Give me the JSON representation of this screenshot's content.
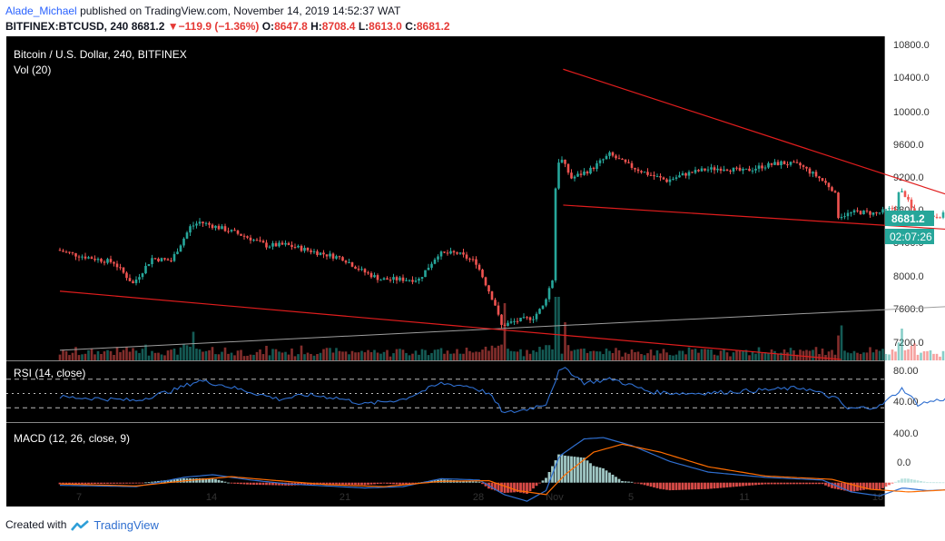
{
  "header": {
    "author": "Alade_Michael",
    "published_text": "published on TradingView.com, November 14, 2019 14:52:37 WAT"
  },
  "quote": {
    "symbol_line": "BITFINEX:BTCUSD, 240",
    "last": "8681.2",
    "change": "−119.9 (−1.36%)",
    "open_label": "O:",
    "open": "8647.8",
    "high_label": "H:",
    "high": "8708.4",
    "low_label": "L:",
    "low": "8613.0",
    "close_label": "C:",
    "close": "8681.2"
  },
  "legend": {
    "title": "Bitcoin / U.S. Dollar, 240, BITFINEX",
    "volume": "Vol (20)",
    "rsi": "RSI (14, close)",
    "macd": "MACD (12, 26, close, 9)"
  },
  "price_badge": {
    "price": "8681.2",
    "countdown": "02:07:26"
  },
  "footer": {
    "created_with": "Created with",
    "brand": "TradingView"
  },
  "colors": {
    "up": "#26a69a",
    "down": "#ef5350",
    "trendline": "#e01d1d",
    "rsi_line": "#2f6fd0",
    "macd_line": "#2f6fd0",
    "signal_line": "#ff6d00",
    "badge_price": "#26a69a",
    "badge_time": "#26a69a"
  },
  "chart_data": [
    {
      "type": "candlestick",
      "title": "Bitcoin / U.S. Dollar, 240, BITFINEX",
      "x_ticks": [
        "7",
        "14",
        "21",
        "28",
        "Nov",
        "5",
        "11",
        "18"
      ],
      "y_ticks": [
        "10800.0",
        "10400.0",
        "10000.0",
        "9600.0",
        "9200.0",
        "8800.0",
        "8400.0",
        "8000.0",
        "7600.0",
        "7200.0"
      ],
      "ylim": [
        7040,
        10880
      ],
      "anchors": [
        {
          "day": -1.0,
          "price": 8350
        },
        {
          "day": 0.0,
          "price": 8290
        },
        {
          "day": 2.0,
          "price": 8200
        },
        {
          "day": 3.0,
          "price": 7950
        },
        {
          "day": 4.0,
          "price": 8250
        },
        {
          "day": 5.0,
          "price": 8220
        },
        {
          "day": 6.0,
          "price": 8620
        },
        {
          "day": 6.5,
          "price": 8680
        },
        {
          "day": 8.0,
          "price": 8580
        },
        {
          "day": 9.0,
          "price": 8500
        },
        {
          "day": 10.0,
          "price": 8400
        },
        {
          "day": 11.0,
          "price": 8410
        },
        {
          "day": 13.0,
          "price": 8300
        },
        {
          "day": 14.0,
          "price": 8250
        },
        {
          "day": 15.0,
          "price": 8100
        },
        {
          "day": 16.0,
          "price": 8000
        },
        {
          "day": 18.0,
          "price": 8000
        },
        {
          "day": 19.0,
          "price": 8300
        },
        {
          "day": 20.0,
          "price": 8310
        },
        {
          "day": 21.0,
          "price": 8200
        },
        {
          "day": 22.0,
          "price": 7700
        },
        {
          "day": 22.3,
          "price": 7450
        },
        {
          "day": 23.0,
          "price": 7500
        },
        {
          "day": 24.0,
          "price": 7550
        },
        {
          "day": 24.5,
          "price": 7680
        },
        {
          "day": 25.0,
          "price": 8000
        },
        {
          "day": 25.2,
          "price": 9300
        },
        {
          "day": 25.4,
          "price": 9450
        },
        {
          "day": 26.0,
          "price": 9200
        },
        {
          "day": 27.0,
          "price": 9300
        },
        {
          "day": 28.0,
          "price": 9480
        },
        {
          "day": 29.0,
          "price": 9350
        },
        {
          "day": 30.0,
          "price": 9250
        },
        {
          "day": 31.0,
          "price": 9170
        },
        {
          "day": 32.0,
          "price": 9250
        },
        {
          "day": 33.0,
          "price": 9300
        },
        {
          "day": 34.0,
          "price": 9320
        },
        {
          "day": 35.0,
          "price": 9280
        },
        {
          "day": 36.0,
          "price": 9340
        },
        {
          "day": 37.0,
          "price": 9380
        },
        {
          "day": 38.0,
          "price": 9350
        },
        {
          "day": 39.0,
          "price": 9200
        },
        {
          "day": 39.8,
          "price": 9050
        },
        {
          "day": 40.0,
          "price": 8750
        },
        {
          "day": 41.0,
          "price": 8800
        },
        {
          "day": 42.0,
          "price": 8780
        },
        {
          "day": 43.0,
          "price": 8850
        },
        {
          "day": 43.2,
          "price": 9050
        },
        {
          "day": 43.5,
          "price": 9000
        },
        {
          "day": 44.0,
          "price": 8750
        },
        {
          "day": 45.0,
          "price": 8750
        },
        {
          "day": 46.0,
          "price": 8780
        },
        {
          "day": 46.5,
          "price": 8820
        },
        {
          "day": 47.0,
          "price": 8750
        },
        {
          "day": 47.5,
          "price": 8681.2
        }
      ],
      "trendlines": [
        {
          "from": {
            "day": 25.4,
            "price": 10490
          },
          "to": {
            "day": 47.9,
            "price": 8830
          }
        },
        {
          "from": {
            "day": 25.4,
            "price": 8880
          },
          "to": {
            "day": 47.9,
            "price": 8560
          }
        },
        {
          "from": {
            "day": -1.0,
            "price": 7860
          },
          "to": {
            "day": 40.0,
            "price": 7050
          }
        }
      ],
      "reference_line": {
        "from": {
          "day": -1.0,
          "price": 7160
        },
        "to": {
          "day": 50.3,
          "price": 7730
        }
      },
      "last_price": 8681.2
    },
    {
      "type": "bar",
      "name": "Vol (20)",
      "spikes": [
        {
          "day": 6.0,
          "level": 0.45
        },
        {
          "day": 22.3,
          "level": 0.9
        },
        {
          "day": 25.2,
          "level": 1.0
        },
        {
          "day": 25.5,
          "level": 0.6
        },
        {
          "day": 40.0,
          "level": 0.55
        },
        {
          "day": 43.2,
          "level": 0.5
        }
      ]
    },
    {
      "type": "line",
      "name": "RSI (14, close)",
      "y_ticks": [
        "80.00",
        "40.00"
      ],
      "ylim": [
        10,
        95
      ],
      "levels": [
        70,
        50,
        30
      ],
      "anchors": [
        {
          "day": -1.0,
          "value": 45
        },
        {
          "day": 1.0,
          "value": 43
        },
        {
          "day": 3.0,
          "value": 40
        },
        {
          "day": 5.0,
          "value": 55
        },
        {
          "day": 6.3,
          "value": 68
        },
        {
          "day": 7.5,
          "value": 62
        },
        {
          "day": 9.0,
          "value": 52
        },
        {
          "day": 10.5,
          "value": 42
        },
        {
          "day": 12.0,
          "value": 48
        },
        {
          "day": 13.5,
          "value": 44
        },
        {
          "day": 15.0,
          "value": 35
        },
        {
          "day": 17.0,
          "value": 42
        },
        {
          "day": 19.0,
          "value": 64
        },
        {
          "day": 20.5,
          "value": 60
        },
        {
          "day": 21.5,
          "value": 50
        },
        {
          "day": 22.3,
          "value": 22
        },
        {
          "day": 23.5,
          "value": 28
        },
        {
          "day": 24.5,
          "value": 36
        },
        {
          "day": 25.2,
          "value": 82
        },
        {
          "day": 25.6,
          "value": 84
        },
        {
          "day": 26.5,
          "value": 65
        },
        {
          "day": 28.0,
          "value": 70
        },
        {
          "day": 30.0,
          "value": 52
        },
        {
          "day": 32.0,
          "value": 50
        },
        {
          "day": 34.0,
          "value": 52
        },
        {
          "day": 36.0,
          "value": 55
        },
        {
          "day": 38.0,
          "value": 58
        },
        {
          "day": 39.8,
          "value": 42
        },
        {
          "day": 40.3,
          "value": 28
        },
        {
          "day": 42.0,
          "value": 32
        },
        {
          "day": 43.2,
          "value": 57
        },
        {
          "day": 44.0,
          "value": 35
        },
        {
          "day": 45.5,
          "value": 43
        },
        {
          "day": 46.5,
          "value": 47
        },
        {
          "day": 47.5,
          "value": 40
        }
      ]
    },
    {
      "type": "line",
      "name": "MACD (12, 26, close, 9)",
      "y_ticks": [
        "400.0",
        "0.0"
      ],
      "ylim": [
        -180,
        450
      ],
      "macd_anchors": [
        {
          "day": -1.0,
          "value": -20
        },
        {
          "day": 3.0,
          "value": -30
        },
        {
          "day": 5.5,
          "value": 40
        },
        {
          "day": 7.0,
          "value": 60
        },
        {
          "day": 9.0,
          "value": 20
        },
        {
          "day": 11.0,
          "value": -10
        },
        {
          "day": 13.0,
          "value": -25
        },
        {
          "day": 15.0,
          "value": -40
        },
        {
          "day": 17.0,
          "value": -30
        },
        {
          "day": 19.0,
          "value": 30
        },
        {
          "day": 21.0,
          "value": 20
        },
        {
          "day": 22.3,
          "value": -90
        },
        {
          "day": 23.5,
          "value": -140
        },
        {
          "day": 24.5,
          "value": -60
        },
        {
          "day": 25.2,
          "value": 200
        },
        {
          "day": 26.5,
          "value": 330
        },
        {
          "day": 27.5,
          "value": 340
        },
        {
          "day": 29.0,
          "value": 280
        },
        {
          "day": 31.0,
          "value": 160
        },
        {
          "day": 33.0,
          "value": 80
        },
        {
          "day": 36.0,
          "value": 40
        },
        {
          "day": 39.0,
          "value": 20
        },
        {
          "day": 40.5,
          "value": -70
        },
        {
          "day": 42.0,
          "value": -100
        },
        {
          "day": 43.2,
          "value": -40
        },
        {
          "day": 44.5,
          "value": -60
        },
        {
          "day": 47.5,
          "value": -40
        }
      ],
      "signal_anchors": [
        {
          "day": -1.0,
          "value": -10
        },
        {
          "day": 3.0,
          "value": -25
        },
        {
          "day": 6.0,
          "value": 20
        },
        {
          "day": 8.0,
          "value": 45
        },
        {
          "day": 10.0,
          "value": 20
        },
        {
          "day": 13.0,
          "value": -15
        },
        {
          "day": 16.0,
          "value": -30
        },
        {
          "day": 19.0,
          "value": 10
        },
        {
          "day": 21.5,
          "value": 15
        },
        {
          "day": 23.0,
          "value": -60
        },
        {
          "day": 24.5,
          "value": -90
        },
        {
          "day": 25.5,
          "value": 60
        },
        {
          "day": 27.0,
          "value": 230
        },
        {
          "day": 28.5,
          "value": 290
        },
        {
          "day": 30.5,
          "value": 230
        },
        {
          "day": 33.0,
          "value": 120
        },
        {
          "day": 36.0,
          "value": 50
        },
        {
          "day": 39.5,
          "value": 25
        },
        {
          "day": 41.5,
          "value": -50
        },
        {
          "day": 43.5,
          "value": -70
        },
        {
          "day": 45.5,
          "value": -55
        },
        {
          "day": 47.5,
          "value": -45
        }
      ]
    }
  ]
}
